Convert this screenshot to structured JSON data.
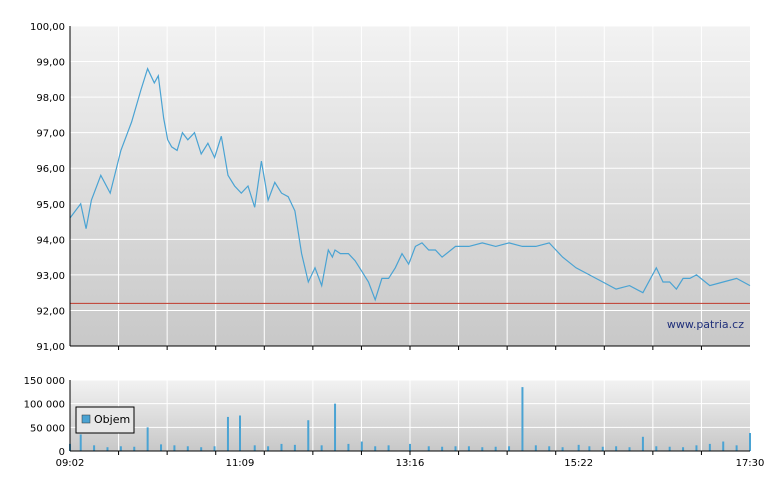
{
  "watermark": "www.patria.cz",
  "colors": {
    "price_line": "#4aa3d3",
    "reference_line": "#c0392b",
    "volume_bar": "#4aa3d3",
    "grid": "#ffffff",
    "background_top": "#f2f2f2",
    "background_bottom": "#c8c8c8"
  },
  "chart_data": [
    {
      "type": "line",
      "x_range": [
        "09:02",
        "17:30"
      ],
      "ylim": [
        91.0,
        100.0
      ],
      "y_ticks": [
        "91,00",
        "92,00",
        "93,00",
        "94,00",
        "95,00",
        "96,00",
        "97,00",
        "98,00",
        "99,00",
        "100,00"
      ],
      "y_tick_values": [
        91,
        92,
        93,
        94,
        95,
        96,
        97,
        98,
        99,
        100
      ],
      "reference_line": 92.2,
      "series": [
        {
          "x": [
            "09:02",
            "09:10",
            "09:14",
            "09:18",
            "09:25",
            "09:32",
            "09:40",
            "09:48",
            "09:55",
            "10:00",
            "10:05",
            "10:08",
            "10:12",
            "10:15",
            "10:18",
            "10:22",
            "10:26",
            "10:30",
            "10:35",
            "10:40",
            "10:45",
            "10:50",
            "10:55",
            "11:00",
            "11:05",
            "11:10",
            "11:15",
            "11:20",
            "11:25",
            "11:30",
            "11:35",
            "11:40",
            "11:45",
            "11:50",
            "11:55",
            "12:00",
            "12:05",
            "12:10",
            "12:15",
            "12:18",
            "12:20",
            "12:24",
            "12:30",
            "12:35",
            "12:40",
            "12:45",
            "12:50",
            "12:55",
            "13:00",
            "13:05",
            "13:10",
            "13:15",
            "13:20",
            "13:25",
            "13:30",
            "13:35",
            "13:40",
            "13:50",
            "14:00",
            "14:10",
            "14:20",
            "14:30",
            "14:40",
            "14:50",
            "15:00",
            "15:10",
            "15:20",
            "15:30",
            "15:40",
            "15:50",
            "16:00",
            "16:10",
            "16:20",
            "16:25",
            "16:30",
            "16:35",
            "16:40",
            "16:45",
            "16:50",
            "17:00",
            "17:10",
            "17:20",
            "17:30"
          ],
          "values": [
            94.6,
            95.0,
            94.3,
            95.1,
            95.8,
            95.3,
            96.5,
            97.3,
            98.2,
            98.8,
            98.4,
            98.6,
            97.4,
            96.8,
            96.6,
            96.5,
            97.0,
            96.8,
            97.0,
            96.4,
            96.7,
            96.3,
            96.9,
            95.8,
            95.5,
            95.3,
            95.5,
            94.9,
            96.2,
            95.1,
            95.6,
            95.3,
            95.2,
            94.8,
            93.6,
            92.8,
            93.2,
            92.7,
            93.7,
            93.5,
            93.7,
            93.6,
            93.6,
            93.4,
            93.1,
            92.8,
            92.3,
            92.9,
            92.9,
            93.2,
            93.6,
            93.3,
            93.8,
            93.9,
            93.7,
            93.7,
            93.5,
            93.8,
            93.8,
            93.9,
            93.8,
            93.9,
            93.8,
            93.8,
            93.9,
            93.5,
            93.2,
            93.0,
            92.8,
            92.6,
            92.7,
            92.5,
            93.2,
            92.8,
            92.8,
            92.6,
            92.9,
            92.9,
            93.0,
            92.7,
            92.8,
            92.9,
            92.7
          ]
        }
      ]
    },
    {
      "type": "bar",
      "x_range": [
        "09:02",
        "17:30"
      ],
      "x_ticks": [
        "09:02",
        "11:09",
        "13:16",
        "15:22",
        "17:30"
      ],
      "ylim": [
        0,
        150000
      ],
      "y_ticks": [
        "0",
        "50 000",
        "100 000",
        "150 000"
      ],
      "y_tick_values": [
        0,
        50000,
        100000,
        150000
      ],
      "series": [
        {
          "name": "Objem",
          "x": [
            "09:02",
            "09:10",
            "09:20",
            "09:30",
            "09:40",
            "09:50",
            "10:00",
            "10:10",
            "10:20",
            "10:30",
            "10:40",
            "10:50",
            "11:00",
            "11:09",
            "11:20",
            "11:30",
            "11:40",
            "11:50",
            "12:00",
            "12:10",
            "12:20",
            "12:30",
            "12:40",
            "12:50",
            "13:00",
            "13:16",
            "13:30",
            "13:40",
            "13:50",
            "14:00",
            "14:10",
            "14:20",
            "14:30",
            "14:40",
            "14:50",
            "15:00",
            "15:10",
            "15:22",
            "15:30",
            "15:40",
            "15:50",
            "16:00",
            "16:10",
            "16:20",
            "16:30",
            "16:40",
            "16:50",
            "17:00",
            "17:10",
            "17:20",
            "17:30"
          ],
          "values": [
            15000,
            35000,
            12000,
            8000,
            10000,
            9000,
            50000,
            14000,
            12000,
            10000,
            8000,
            10000,
            72000,
            75000,
            12000,
            10000,
            15000,
            13000,
            65000,
            12000,
            100000,
            15000,
            20000,
            10000,
            12000,
            15000,
            10000,
            9000,
            10000,
            10000,
            8000,
            9000,
            10000,
            135000,
            12000,
            10000,
            8000,
            13000,
            10000,
            9000,
            10000,
            8000,
            30000,
            10000,
            9000,
            8000,
            12000,
            15000,
            20000,
            12000,
            38000
          ]
        }
      ]
    }
  ]
}
